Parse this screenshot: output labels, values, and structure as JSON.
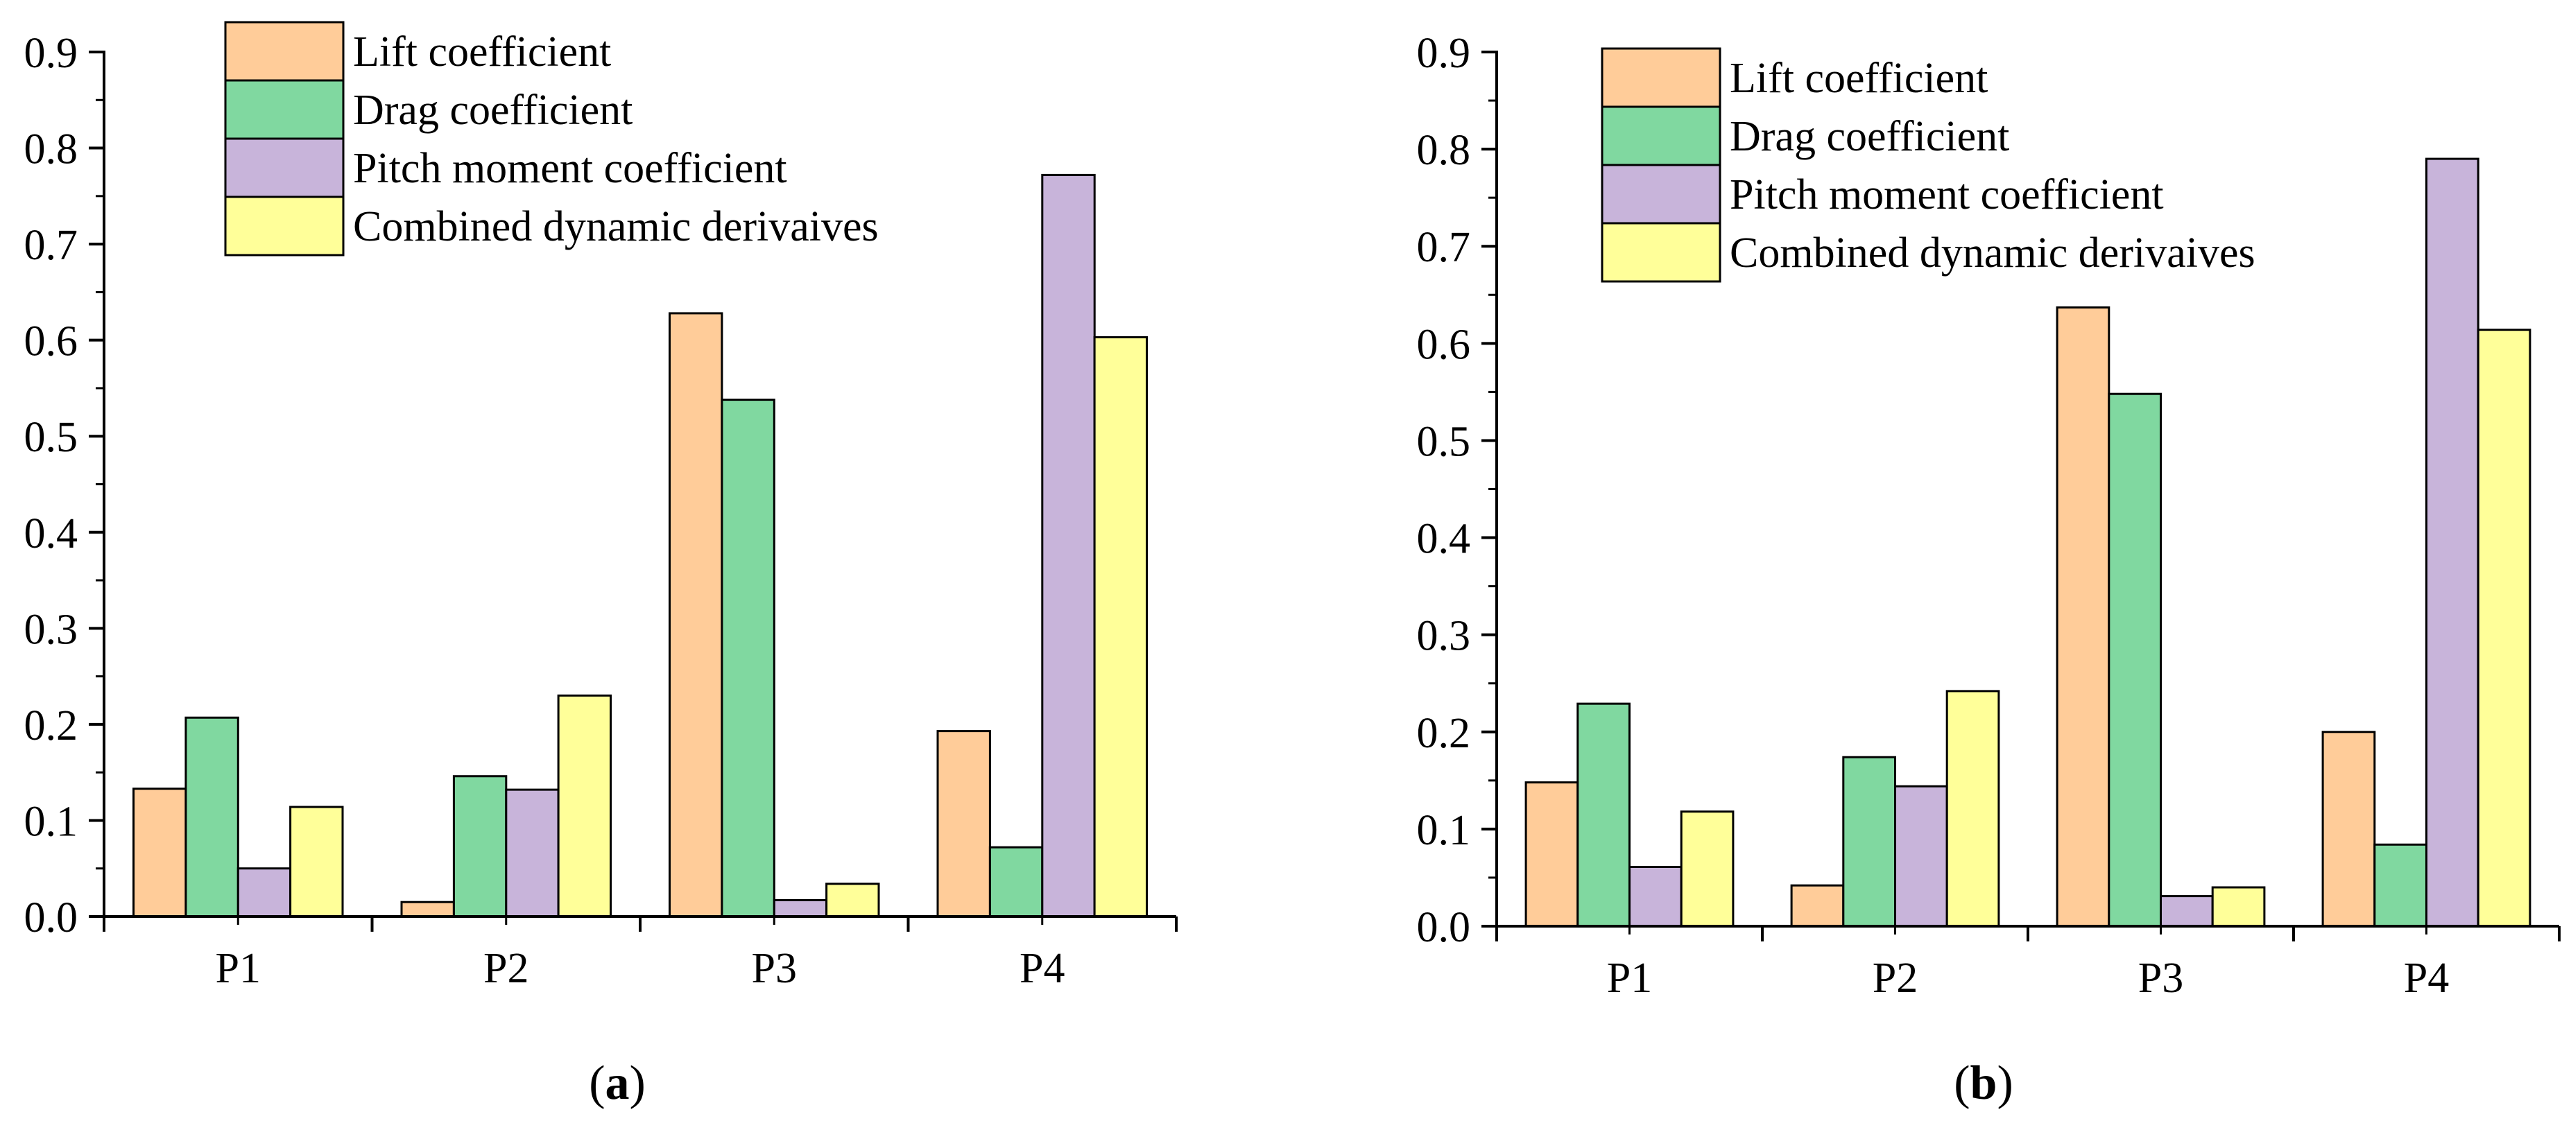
{
  "figure": {
    "panels": [
      {
        "open": "(",
        "letter": "a",
        "close": ")"
      },
      {
        "open": "(",
        "letter": "b",
        "close": ")"
      }
    ]
  },
  "chart_data": [
    {
      "type": "bar",
      "panel": "a",
      "categories": [
        "P1",
        "P2",
        "P3",
        "P4"
      ],
      "ylim": [
        0,
        0.9
      ],
      "yticks": [
        "0.0",
        "0.1",
        "0.2",
        "0.3",
        "0.4",
        "0.5",
        "0.6",
        "0.7",
        "0.8",
        "0.9"
      ],
      "xlabel": "",
      "ylabel": "",
      "legend_position": "top-center",
      "series": [
        {
          "name": "Lift coefficient",
          "color": "#FFCC99",
          "values": [
            0.133,
            0.015,
            0.628,
            0.193
          ]
        },
        {
          "name": "Drag coefficient",
          "color": "#80D8A0",
          "values": [
            0.207,
            0.146,
            0.538,
            0.072
          ]
        },
        {
          "name": "Pitch moment coefficient",
          "color": "#C8B4DA",
          "values": [
            0.05,
            0.132,
            0.017,
            0.772
          ]
        },
        {
          "name": "Combined dynamic derivaives",
          "color": "#FFFF99",
          "values": [
            0.114,
            0.23,
            0.034,
            0.603
          ]
        }
      ]
    },
    {
      "type": "bar",
      "panel": "b",
      "categories": [
        "P1",
        "P2",
        "P3",
        "P4"
      ],
      "ylim": [
        0,
        0.9
      ],
      "yticks": [
        "0.0",
        "0.1",
        "0.2",
        "0.3",
        "0.4",
        "0.5",
        "0.6",
        "0.7",
        "0.8",
        "0.9"
      ],
      "xlabel": "",
      "ylabel": "",
      "legend_position": "top-center",
      "series": [
        {
          "name": "Lift coefficient",
          "color": "#FFCC99",
          "values": [
            0.148,
            0.042,
            0.637,
            0.2
          ]
        },
        {
          "name": "Drag coefficient",
          "color": "#80D8A0",
          "values": [
            0.229,
            0.174,
            0.548,
            0.084
          ]
        },
        {
          "name": "Pitch moment coefficient",
          "color": "#C8B4DA",
          "values": [
            0.061,
            0.144,
            0.031,
            0.79
          ]
        },
        {
          "name": "Combined dynamic derivaives",
          "color": "#FFFF99",
          "values": [
            0.118,
            0.242,
            0.04,
            0.614
          ]
        }
      ]
    }
  ]
}
